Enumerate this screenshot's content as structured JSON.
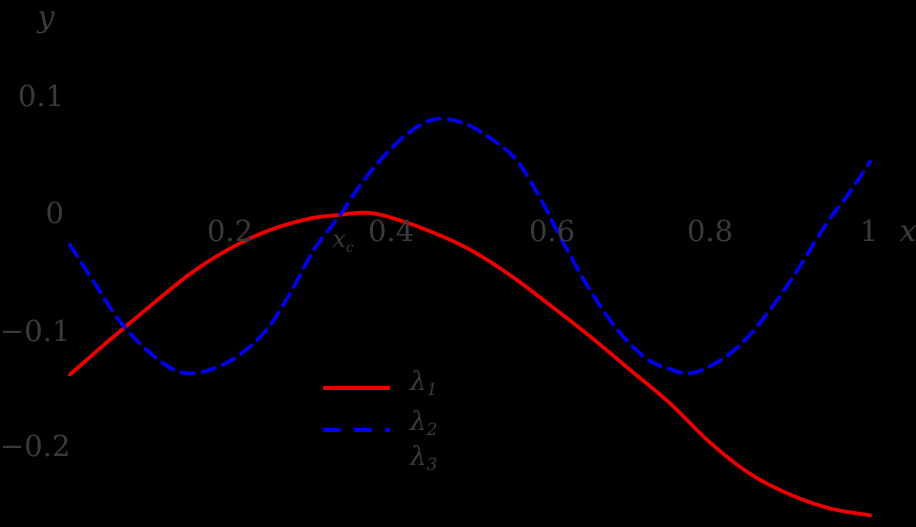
{
  "figure": {
    "background_color": "#000000",
    "text_color": "#3a3a3a"
  },
  "axes": {
    "y_axis_letter": "y",
    "x_axis_letter": "x",
    "y_ticks": [
      {
        "label": "0.1",
        "value": 0.1
      },
      {
        "label": "0",
        "value": 0
      },
      {
        "label": "−0.1",
        "value": -0.1
      },
      {
        "label": "−0.2",
        "value": -0.2
      }
    ],
    "x_ticks": [
      {
        "label": "0.2",
        "value": 0.2
      },
      {
        "label": "0.4",
        "value": 0.4
      },
      {
        "label": "0.6",
        "value": 0.6
      },
      {
        "label": "0.8",
        "value": 0.8
      },
      {
        "label": "1",
        "value": 1
      }
    ],
    "x_special_tick": {
      "base": "x",
      "sub": "c",
      "value": 0.335
    }
  },
  "legend": {
    "items": [
      {
        "base": "λ",
        "sub": "1",
        "color": "#ee0000",
        "dash": false,
        "visible_line": true
      },
      {
        "base": "λ",
        "sub": "2",
        "color": "#0000ee",
        "dash": true,
        "visible_line": true
      },
      {
        "base": "λ",
        "sub": "3",
        "color": "#000000",
        "dash": false,
        "visible_line": false
      }
    ]
  },
  "chart_data": {
    "type": "line",
    "title": "",
    "xlabel": "x",
    "ylabel": "y",
    "xlim": [
      -0.06,
      1.06
    ],
    "ylim": [
      -0.27,
      0.19
    ],
    "x_tick_values": [
      0.2,
      0.4,
      0.6,
      0.8,
      1
    ],
    "y_tick_values": [
      0.1,
      0,
      -0.1,
      -0.2
    ],
    "grid": false,
    "legend_position": "inside-bottom-center",
    "crossing_annotation": {
      "label": "x_c",
      "x": 0.335,
      "y": 0
    },
    "series": [
      {
        "name": "λ1",
        "color": "#ee0000",
        "line_style": "solid",
        "points": [
          [
            0.0,
            -0.138
          ],
          [
            0.05,
            -0.108
          ],
          [
            0.1,
            -0.079
          ],
          [
            0.15,
            -0.051
          ],
          [
            0.2,
            -0.029
          ],
          [
            0.25,
            -0.013
          ],
          [
            0.3,
            -0.003
          ],
          [
            0.335,
            0.0
          ],
          [
            0.37,
            0.002
          ],
          [
            0.4,
            -0.002
          ],
          [
            0.45,
            -0.014
          ],
          [
            0.5,
            -0.03
          ],
          [
            0.55,
            -0.052
          ],
          [
            0.6,
            -0.078
          ],
          [
            0.65,
            -0.105
          ],
          [
            0.7,
            -0.134
          ],
          [
            0.75,
            -0.163
          ],
          [
            0.8,
            -0.197
          ],
          [
            0.85,
            -0.224
          ],
          [
            0.9,
            -0.242
          ],
          [
            0.95,
            -0.254
          ],
          [
            1.0,
            -0.26
          ]
        ]
      },
      {
        "name": "λ2",
        "color": "#0000ee",
        "line_style": "dashed",
        "points": [
          [
            0.0,
            -0.026
          ],
          [
            0.03,
            -0.058
          ],
          [
            0.06,
            -0.09
          ],
          [
            0.09,
            -0.113
          ],
          [
            0.12,
            -0.13
          ],
          [
            0.145,
            -0.137
          ],
          [
            0.175,
            -0.134
          ],
          [
            0.21,
            -0.122
          ],
          [
            0.245,
            -0.1
          ],
          [
            0.275,
            -0.068
          ],
          [
            0.305,
            -0.03
          ],
          [
            0.3375,
            0.0
          ],
          [
            0.365,
            0.028
          ],
          [
            0.395,
            0.053
          ],
          [
            0.425,
            0.072
          ],
          [
            0.456,
            0.083
          ],
          [
            0.49,
            0.08
          ],
          [
            0.52,
            0.069
          ],
          [
            0.555,
            0.05
          ],
          [
            0.585,
            0.018
          ],
          [
            0.615,
            -0.022
          ],
          [
            0.65,
            -0.065
          ],
          [
            0.685,
            -0.1
          ],
          [
            0.72,
            -0.124
          ],
          [
            0.748,
            -0.133
          ],
          [
            0.775,
            -0.137
          ],
          [
            0.805,
            -0.129
          ],
          [
            0.84,
            -0.111
          ],
          [
            0.875,
            -0.082
          ],
          [
            0.91,
            -0.047
          ],
          [
            0.945,
            -0.008
          ],
          [
            0.975,
            0.02
          ],
          [
            1.0,
            0.046
          ]
        ]
      },
      {
        "name": "λ3",
        "color": "#000000",
        "line_style": "solid",
        "visible": false,
        "points": []
      }
    ]
  }
}
